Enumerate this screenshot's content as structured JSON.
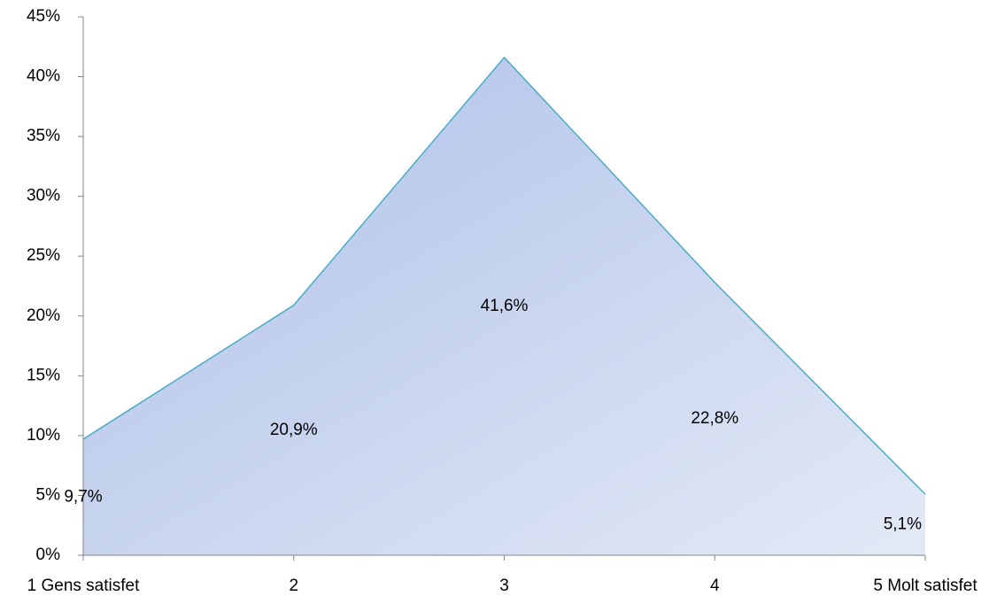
{
  "chart_data": {
    "type": "area",
    "categories": [
      "1 Gens satisfet",
      "2",
      "3",
      "4",
      "5 Molt satisfet"
    ],
    "values": [
      9.7,
      20.9,
      41.6,
      22.8,
      5.1
    ],
    "value_labels": [
      "9,7%",
      "20,9%",
      "41,6%",
      "22,8%",
      "5,1%"
    ],
    "color": "#4bacc6",
    "ylim": [
      0,
      45
    ],
    "yticks": [
      {
        "value": 0,
        "label": "0%"
      },
      {
        "value": 5,
        "label": "5%"
      },
      {
        "value": 10,
        "label": "10%"
      },
      {
        "value": 15,
        "label": "15%"
      },
      {
        "value": 20,
        "label": "20%"
      },
      {
        "value": 25,
        "label": "25%"
      },
      {
        "value": 30,
        "label": "30%"
      },
      {
        "value": 35,
        "label": "35%"
      },
      {
        "value": 40,
        "label": "40%"
      },
      {
        "value": 45,
        "label": "45%"
      }
    ],
    "grid": false
  }
}
